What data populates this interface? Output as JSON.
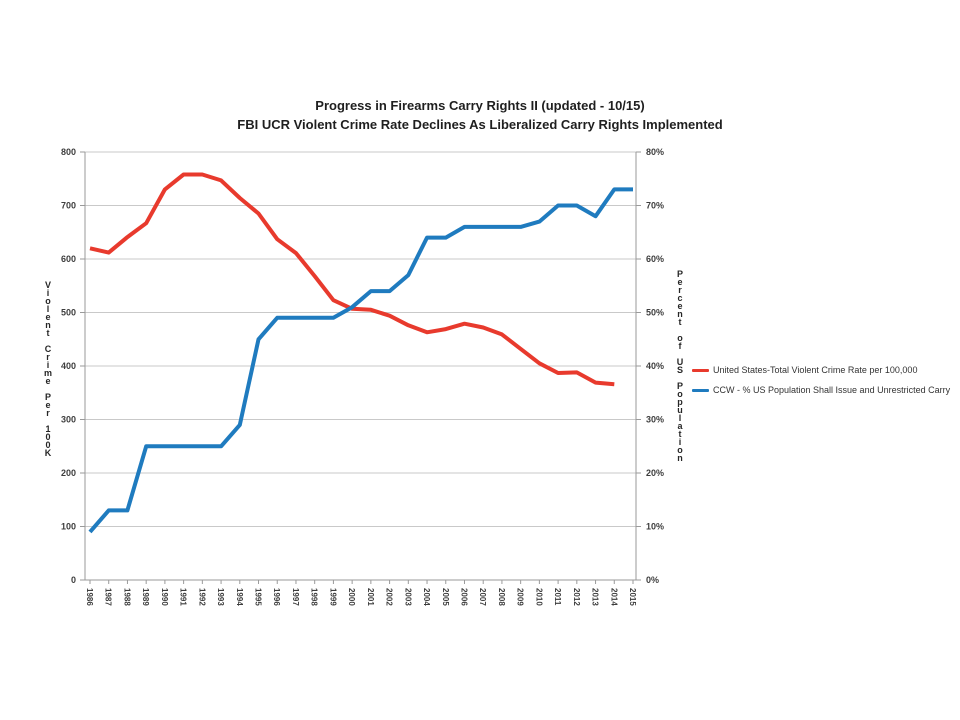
{
  "chart_data": {
    "type": "line",
    "title": "Progress in Firearms Carry Rights II (updated - 10/15)",
    "subtitle": "FBI UCR Violent Crime Rate Declines As Liberalized Carry Rights Implemented",
    "x": [
      1986,
      1987,
      1988,
      1989,
      1990,
      1991,
      1992,
      1993,
      1994,
      1995,
      1996,
      1997,
      1998,
      1999,
      2000,
      2001,
      2002,
      2003,
      2004,
      2005,
      2006,
      2007,
      2008,
      2009,
      2010,
      2011,
      2012,
      2013,
      2014,
      2015
    ],
    "x_tick_labels": [
      "1986",
      "1987",
      "1988",
      "1989",
      "1990",
      "1991",
      "1992",
      "1993",
      "1994",
      "1995",
      "1996",
      "1997",
      "1998",
      "1999",
      "2000",
      "2001",
      "2002",
      "2003",
      "2004",
      "2005",
      "2006",
      "2007",
      "2008",
      "2009",
      "2010",
      "2011",
      "2012",
      "2013",
      "2014",
      "2015"
    ],
    "series": [
      {
        "name": "United States-Total Violent Crime Rate per 100,000",
        "axis": "left",
        "color": "#e83a2d",
        "values": [
          620,
          612,
          641,
          667,
          730,
          758,
          758,
          747,
          714,
          685,
          637,
          611,
          568,
          523,
          507,
          505,
          494,
          476,
          463,
          469,
          479,
          472,
          459,
          432,
          405,
          387,
          388,
          369,
          366,
          null
        ]
      },
      {
        "name": "CCW - % US Population Shall Issue and Unrestricted Carry",
        "axis": "right",
        "color": "#1f7bbf",
        "values": [
          9,
          13,
          13,
          25,
          25,
          25,
          25,
          25,
          29,
          45,
          49,
          49,
          49,
          49,
          51,
          54,
          54,
          57,
          64,
          64,
          66,
          66,
          66,
          66,
          67,
          70,
          70,
          68,
          73,
          73
        ]
      }
    ],
    "left_axis": {
      "title": "Violent Crime Per 100K",
      "min": 0,
      "max": 800,
      "tick_step": 100,
      "tick_labels": [
        "0",
        "100",
        "200",
        "300",
        "400",
        "500",
        "600",
        "700",
        "800"
      ]
    },
    "right_axis": {
      "title": "Percent of US Population",
      "min": 0,
      "max": 80,
      "tick_step": 10,
      "tick_labels": [
        "0%",
        "10%",
        "20%",
        "30%",
        "40%",
        "50%",
        "60%",
        "70%",
        "80%"
      ]
    },
    "grid": true,
    "legend_position": "right"
  },
  "colors": {
    "grid": "#c9c9c9",
    "axis": "#9a9a9a",
    "line_red": "#e83a2d",
    "line_blue": "#1f7bbf"
  }
}
